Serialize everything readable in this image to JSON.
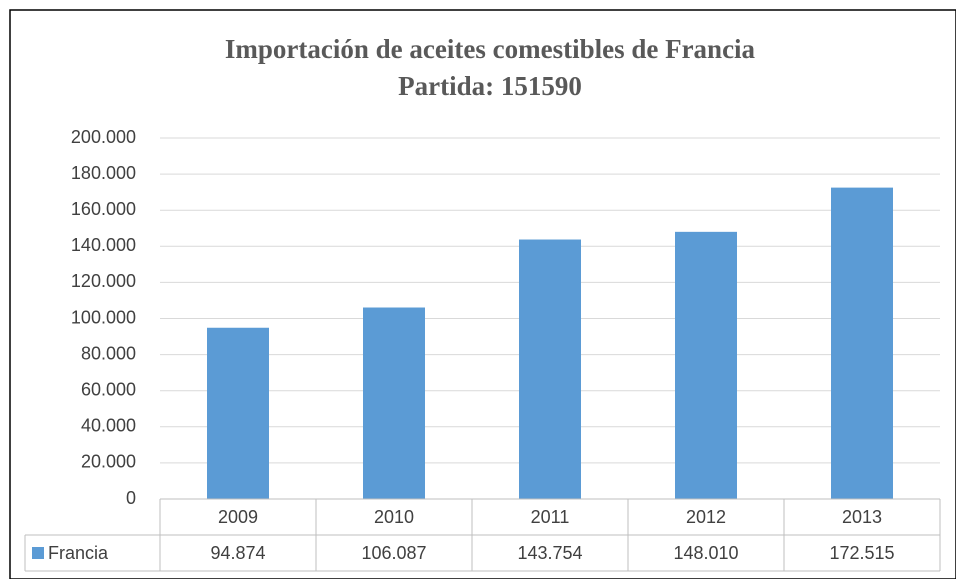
{
  "chart_data": {
    "type": "bar",
    "title": "Importación de aceites comestibles de Francia",
    "subtitle": "Partida: 151590",
    "categories": [
      "2009",
      "2010",
      "2011",
      "2012",
      "2013"
    ],
    "series": [
      {
        "name": "Francia",
        "color": "#5b9bd5",
        "values": [
          94874,
          106087,
          143754,
          148010,
          172515
        ],
        "value_labels": [
          "94.874",
          "106.087",
          "143.754",
          "148.010",
          "172.515"
        ]
      }
    ],
    "ylim": [
      0,
      200000
    ],
    "yticks": [
      0,
      {
        "value": 20000,
        "label": "20.000"
      },
      {
        "value": 40000,
        "label": "40.000"
      },
      {
        "value": 60000,
        "label": "60.000"
      },
      {
        "value": 80000,
        "label": "80.000"
      },
      {
        "value": 100000,
        "label": "100.000"
      },
      {
        "value": 120000,
        "label": "120.000"
      },
      {
        "value": 140000,
        "label": "140.000"
      },
      {
        "value": 160000,
        "label": "160.000"
      },
      {
        "value": 180000,
        "label": "180.000"
      },
      {
        "value": 200000,
        "label": "200.000"
      }
    ],
    "grid": true,
    "data_table": true
  }
}
